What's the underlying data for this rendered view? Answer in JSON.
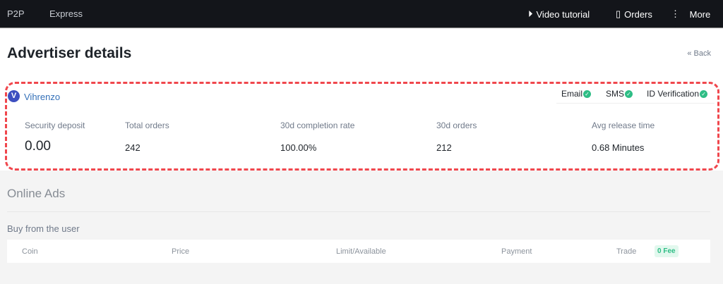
{
  "nav": {
    "p2p": "P2P",
    "express": "Express",
    "video": "Video tutorial",
    "orders": "Orders",
    "more": "More"
  },
  "page": {
    "title": "Advertiser details",
    "back": "« Back"
  },
  "advertiser": {
    "avatar": "V",
    "name": "Vihrenzo",
    "verifications": [
      {
        "label": "Email"
      },
      {
        "label": "SMS"
      },
      {
        "label": "ID Verification"
      }
    ],
    "stats": [
      {
        "label": "Security deposit",
        "value": "0.00"
      },
      {
        "label": "Total orders",
        "value": "242"
      },
      {
        "label": "30d completion rate",
        "value": "100.00%"
      },
      {
        "label": "30d orders",
        "value": "212"
      },
      {
        "label": "Avg release time",
        "value": "0.68 Minutes"
      }
    ]
  },
  "ads": {
    "title": "Online Ads",
    "buy": "Buy from the user",
    "columns": [
      "Coin",
      "Price",
      "Limit/Available",
      "Payment",
      "Trade"
    ],
    "fee_badge": "0 Fee"
  },
  "colors": {
    "highlight": "#f0474d",
    "verified": "#2ebd85",
    "name_link": "#3470b8"
  }
}
